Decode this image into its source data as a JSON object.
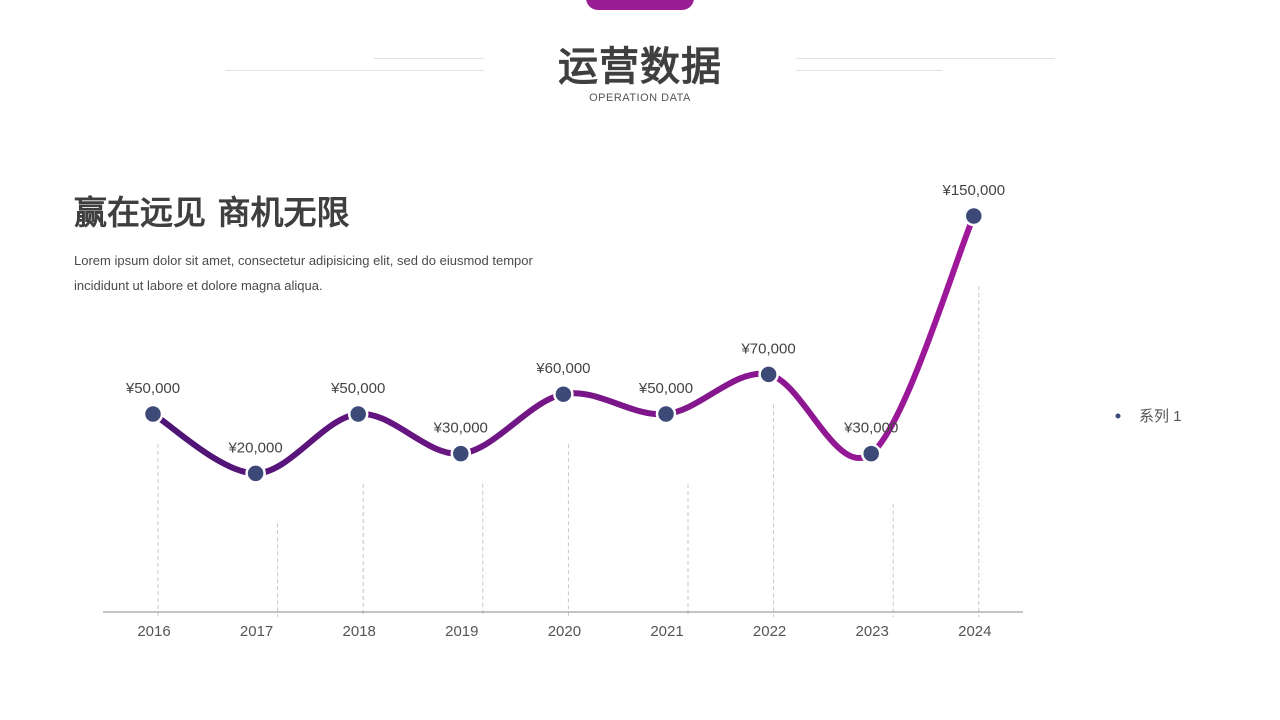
{
  "header": {
    "title": "运营数据",
    "subtitle": "OPERATION DATA"
  },
  "intro": {
    "slogan": "赢在远见 商机无限",
    "description": "Lorem ipsum dolor sit amet, consectetur adipisicing elit, sed do eiusmod tempor incididunt ut labore et dolore magna aliqua."
  },
  "colors": {
    "accent": "#9b1d96",
    "line_start": "#4b1474",
    "line_end": "#a0189a",
    "marker": "#3d4a78",
    "text": "#3f3f3f"
  },
  "chart_data": {
    "type": "line",
    "smooth": true,
    "categories": [
      "2016",
      "2017",
      "2018",
      "2019",
      "2020",
      "2021",
      "2022",
      "2023",
      "2024"
    ],
    "series": [
      {
        "name": "系列 1",
        "values": [
          50000,
          20000,
          50000,
          30000,
          60000,
          50000,
          70000,
          30000,
          150000
        ]
      }
    ],
    "data_labels": [
      "¥50,000",
      "¥20,000",
      "¥50,000",
      "¥30,000",
      "¥60,000",
      "¥50,000",
      "¥70,000",
      "¥30,000",
      "¥150,000"
    ],
    "ylim": [
      -50000,
      150000
    ],
    "grid": false,
    "legend": "right"
  }
}
